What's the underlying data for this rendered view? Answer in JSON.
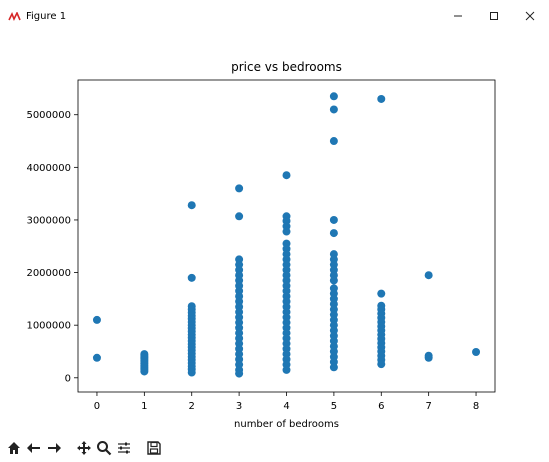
{
  "window": {
    "title": "Figure 1"
  },
  "icons": {
    "app": "matplotlib-icon",
    "minimize": "minimize-icon",
    "maximize": "maximize-icon",
    "close": "close-icon",
    "home": "home-icon",
    "back": "back-arrow-icon",
    "forward": "forward-arrow-icon",
    "pan": "pan-icon",
    "zoom": "zoom-icon",
    "configure": "configure-subplots-icon",
    "save": "save-icon"
  },
  "colors": {
    "marker": "#1f77b4",
    "axes": "#000000"
  },
  "chart_data": {
    "type": "scatter",
    "title": "price vs bedrooms",
    "xlabel": "number of bedrooms",
    "ylabel": "",
    "xlim": [
      -0.4,
      8.4
    ],
    "ylim": [
      -270000,
      5660000
    ],
    "xticks": [
      0,
      1,
      2,
      3,
      4,
      5,
      6,
      7,
      8
    ],
    "xtick_labels": [
      "0",
      "1",
      "2",
      "3",
      "4",
      "5",
      "6",
      "7",
      "8"
    ],
    "yticks": [
      0,
      1000000,
      2000000,
      3000000,
      4000000,
      5000000
    ],
    "ytick_labels": [
      "0",
      "1000000",
      "2000000",
      "3000000",
      "4000000",
      "5000000"
    ],
    "grid": false,
    "series": [
      {
        "color": "#1f77b4",
        "points": [
          [
            0,
            1100000
          ],
          [
            0,
            380000
          ],
          [
            1,
            450000
          ],
          [
            1,
            420000
          ],
          [
            1,
            390000
          ],
          [
            1,
            360000
          ],
          [
            1,
            330000
          ],
          [
            1,
            300000
          ],
          [
            1,
            270000
          ],
          [
            1,
            240000
          ],
          [
            1,
            210000
          ],
          [
            1,
            180000
          ],
          [
            1,
            150000
          ],
          [
            1,
            120000
          ],
          [
            2,
            3280000
          ],
          [
            2,
            1900000
          ],
          [
            2,
            1360000
          ],
          [
            2,
            1300000
          ],
          [
            2,
            1240000
          ],
          [
            2,
            1180000
          ],
          [
            2,
            1120000
          ],
          [
            2,
            1060000
          ],
          [
            2,
            1000000
          ],
          [
            2,
            940000
          ],
          [
            2,
            880000
          ],
          [
            2,
            820000
          ],
          [
            2,
            760000
          ],
          [
            2,
            700000
          ],
          [
            2,
            640000
          ],
          [
            2,
            580000
          ],
          [
            2,
            520000
          ],
          [
            2,
            460000
          ],
          [
            2,
            400000
          ],
          [
            2,
            340000
          ],
          [
            2,
            280000
          ],
          [
            2,
            220000
          ],
          [
            2,
            160000
          ],
          [
            2,
            100000
          ],
          [
            3,
            3600000
          ],
          [
            3,
            3070000
          ],
          [
            3,
            2250000
          ],
          [
            3,
            2150000
          ],
          [
            3,
            2050000
          ],
          [
            3,
            1950000
          ],
          [
            3,
            1850000
          ],
          [
            3,
            1750000
          ],
          [
            3,
            1650000
          ],
          [
            3,
            1550000
          ],
          [
            3,
            1450000
          ],
          [
            3,
            1350000
          ],
          [
            3,
            1250000
          ],
          [
            3,
            1150000
          ],
          [
            3,
            1050000
          ],
          [
            3,
            950000
          ],
          [
            3,
            850000
          ],
          [
            3,
            750000
          ],
          [
            3,
            650000
          ],
          [
            3,
            550000
          ],
          [
            3,
            450000
          ],
          [
            3,
            350000
          ],
          [
            3,
            250000
          ],
          [
            3,
            150000
          ],
          [
            3,
            80000
          ],
          [
            4,
            3850000
          ],
          [
            4,
            3070000
          ],
          [
            4,
            2980000
          ],
          [
            4,
            2880000
          ],
          [
            4,
            2780000
          ],
          [
            4,
            2550000
          ],
          [
            4,
            2450000
          ],
          [
            4,
            2350000
          ],
          [
            4,
            2250000
          ],
          [
            4,
            2150000
          ],
          [
            4,
            2050000
          ],
          [
            4,
            1950000
          ],
          [
            4,
            1850000
          ],
          [
            4,
            1750000
          ],
          [
            4,
            1650000
          ],
          [
            4,
            1550000
          ],
          [
            4,
            1450000
          ],
          [
            4,
            1350000
          ],
          [
            4,
            1250000
          ],
          [
            4,
            1150000
          ],
          [
            4,
            1050000
          ],
          [
            4,
            950000
          ],
          [
            4,
            850000
          ],
          [
            4,
            750000
          ],
          [
            4,
            650000
          ],
          [
            4,
            550000
          ],
          [
            4,
            450000
          ],
          [
            4,
            350000
          ],
          [
            4,
            250000
          ],
          [
            4,
            150000
          ],
          [
            5,
            5350000
          ],
          [
            5,
            5100000
          ],
          [
            5,
            4500000
          ],
          [
            5,
            3000000
          ],
          [
            5,
            2750000
          ],
          [
            5,
            2350000
          ],
          [
            5,
            2250000
          ],
          [
            5,
            2150000
          ],
          [
            5,
            2050000
          ],
          [
            5,
            1950000
          ],
          [
            5,
            1850000
          ],
          [
            5,
            1700000
          ],
          [
            5,
            1600000
          ],
          [
            5,
            1500000
          ],
          [
            5,
            1400000
          ],
          [
            5,
            1300000
          ],
          [
            5,
            1200000
          ],
          [
            5,
            1100000
          ],
          [
            5,
            1000000
          ],
          [
            5,
            900000
          ],
          [
            5,
            800000
          ],
          [
            5,
            700000
          ],
          [
            5,
            600000
          ],
          [
            5,
            500000
          ],
          [
            5,
            400000
          ],
          [
            5,
            300000
          ],
          [
            5,
            200000
          ],
          [
            6,
            5300000
          ],
          [
            6,
            1600000
          ],
          [
            6,
            1370000
          ],
          [
            6,
            1300000
          ],
          [
            6,
            1220000
          ],
          [
            6,
            1140000
          ],
          [
            6,
            1060000
          ],
          [
            6,
            980000
          ],
          [
            6,
            900000
          ],
          [
            6,
            820000
          ],
          [
            6,
            740000
          ],
          [
            6,
            660000
          ],
          [
            6,
            580000
          ],
          [
            6,
            500000
          ],
          [
            6,
            420000
          ],
          [
            6,
            340000
          ],
          [
            6,
            260000
          ],
          [
            7,
            1950000
          ],
          [
            7,
            420000
          ],
          [
            7,
            380000
          ],
          [
            8,
            490000
          ]
        ]
      }
    ]
  }
}
